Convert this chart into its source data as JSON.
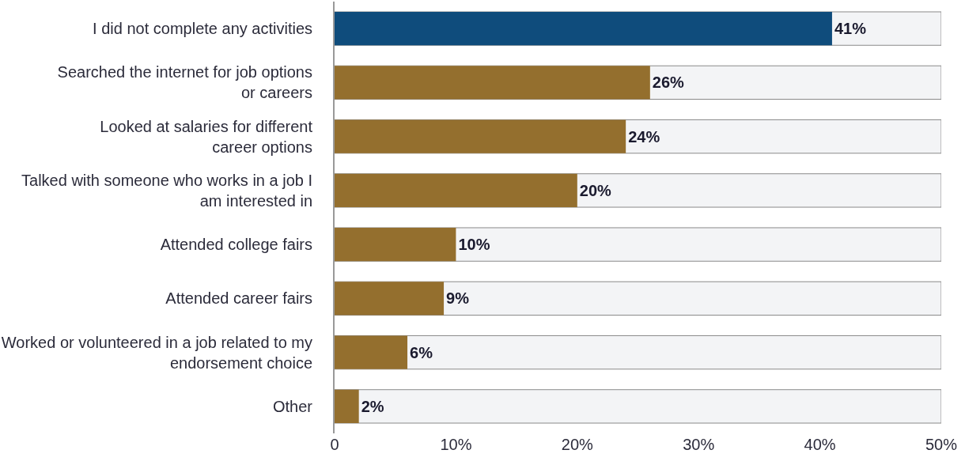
{
  "chart_data": {
    "type": "bar",
    "orientation": "horizontal",
    "categories": [
      "I did not complete any activities",
      "Searched the internet for job options\nor careers",
      "Looked at salaries for different\ncareer options",
      "Talked with someone who works in a job I\nam interested in",
      "Attended college fairs",
      "Attended career fairs",
      "Worked or volunteered in a job related to my\nendorsement choice",
      "Other"
    ],
    "values": [
      41,
      26,
      24,
      20,
      10,
      9,
      6,
      2
    ],
    "colors": [
      "#0f4c7c",
      "#946f2e",
      "#946f2e",
      "#946f2e",
      "#946f2e",
      "#946f2e",
      "#946f2e",
      "#946f2e"
    ],
    "value_labels": [
      "41%",
      "26%",
      "24%",
      "20%",
      "10%",
      "9%",
      "6%",
      "2%"
    ],
    "xlim": [
      0,
      50
    ],
    "xticks": [
      {
        "value": 0,
        "label": "0"
      },
      {
        "value": 10,
        "label": "10%"
      },
      {
        "value": 20,
        "label": "20%"
      },
      {
        "value": 30,
        "label": "30%"
      },
      {
        "value": 40,
        "label": "40%"
      },
      {
        "value": 50,
        "label": "50%"
      }
    ],
    "grid": false,
    "legend": false
  }
}
